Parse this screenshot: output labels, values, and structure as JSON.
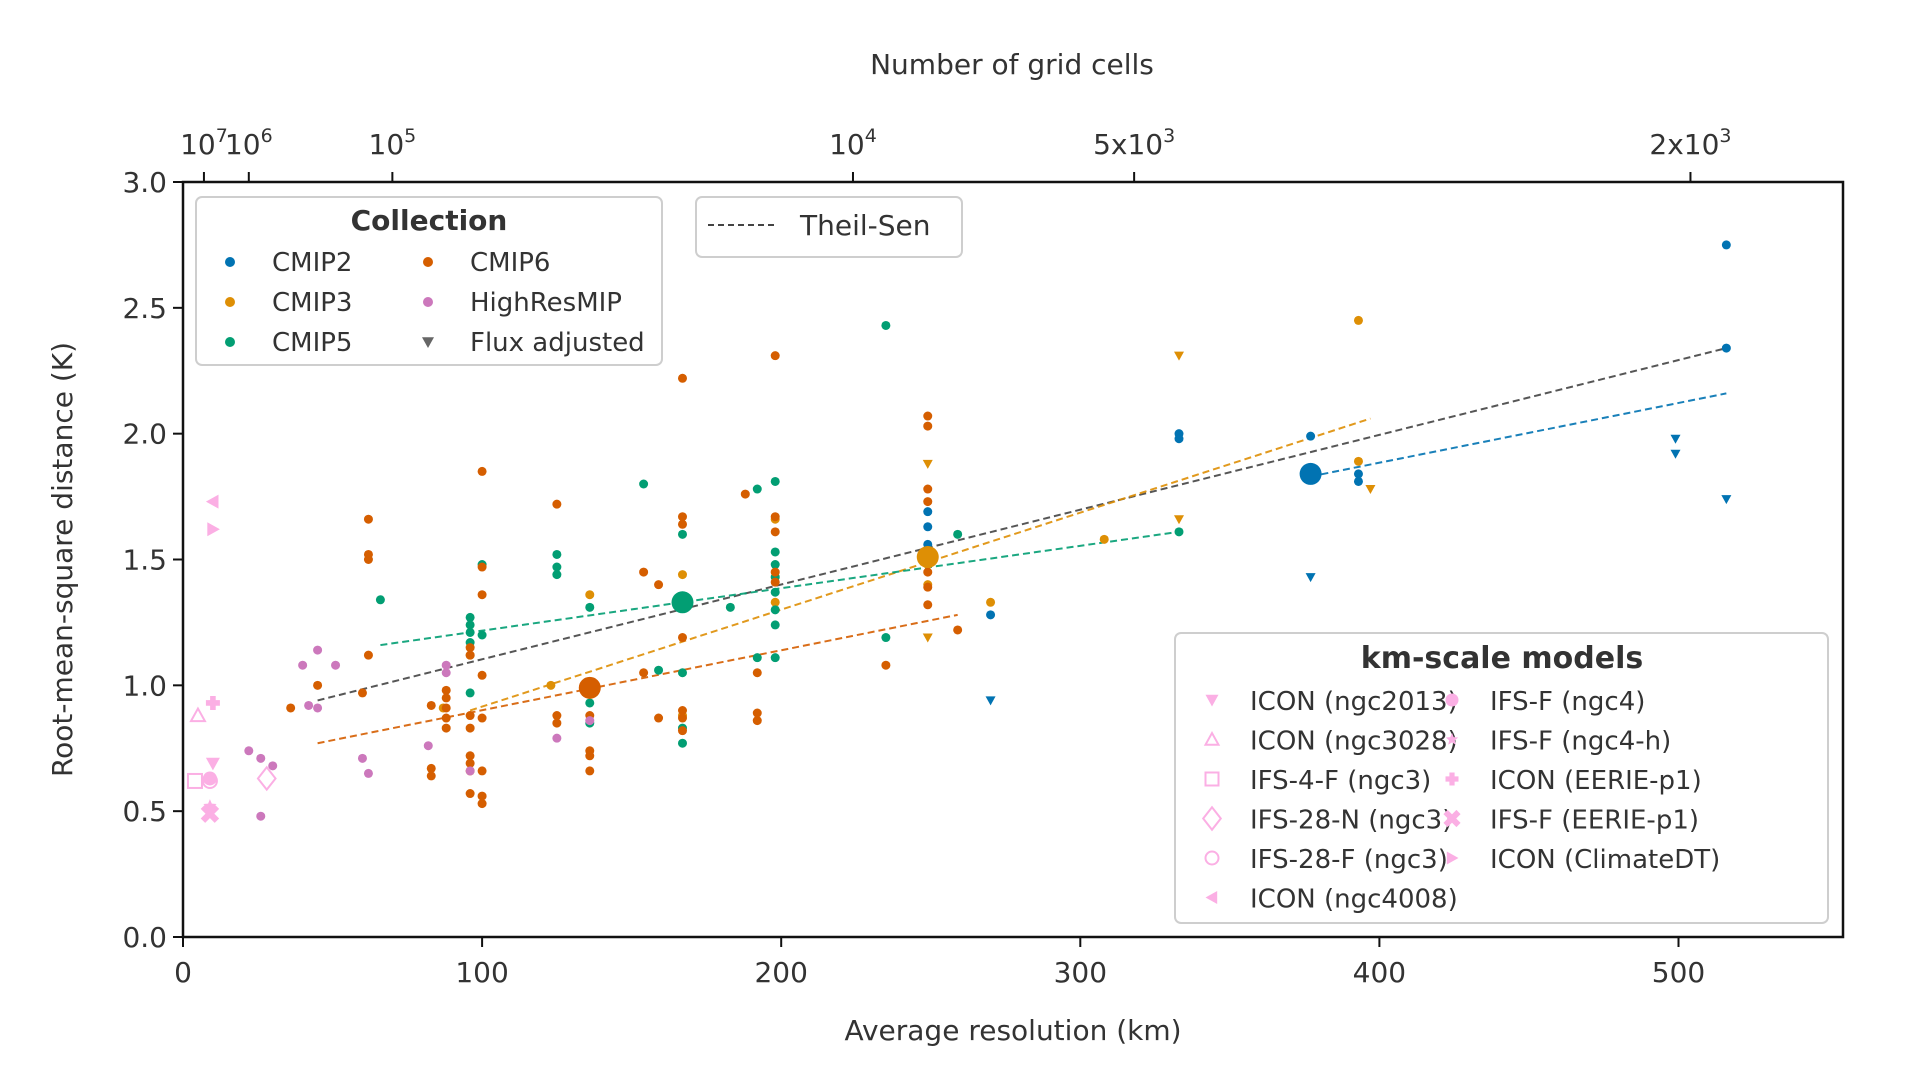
{
  "chart_data": {
    "type": "scatter",
    "title": "",
    "xlabel": "Average resolution (km)",
    "ylabel": "Root-mean-square distance (K)",
    "top_xlabel": "Number of grid cells",
    "xlim": [
      0,
      555
    ],
    "ylim": [
      0.0,
      3.0
    ],
    "xticks": [
      0,
      100,
      200,
      300,
      400,
      500
    ],
    "xtick_labels": [
      "0",
      "100",
      "200",
      "300",
      "400",
      "500"
    ],
    "yticks": [
      0.0,
      0.5,
      1.0,
      1.5,
      2.0,
      2.5,
      3.0
    ],
    "ytick_labels": [
      "0.0",
      "0.5",
      "1.0",
      "1.5",
      "2.0",
      "2.5",
      "3.0"
    ],
    "top_ticks": [
      {
        "km": 7,
        "base": "10",
        "exp": "7",
        "prefix": ""
      },
      {
        "km": 22,
        "base": "10",
        "exp": "6",
        "prefix": ""
      },
      {
        "km": 70,
        "base": "10",
        "exp": "5",
        "prefix": ""
      },
      {
        "km": 224,
        "base": "10",
        "exp": "4",
        "prefix": ""
      },
      {
        "km": 318,
        "base": "10",
        "exp": "3",
        "prefix": "5x"
      },
      {
        "km": 504,
        "base": "10",
        "exp": "3",
        "prefix": "2x"
      }
    ],
    "grid": false,
    "colors": {
      "CMIP2": "#0173b2",
      "CMIP3": "#de8f05",
      "CMIP5": "#029e73",
      "CMIP6": "#d55e00",
      "HighResMIP": "#cc78bc",
      "km": "#fbafe4",
      "flux": "#666666",
      "theil": "#444444"
    },
    "legend_collection": {
      "title": "Collection",
      "position": "top-left",
      "entries": [
        {
          "label": "CMIP2",
          "marker": "circle",
          "color_key": "CMIP2"
        },
        {
          "label": "CMIP3",
          "marker": "circle",
          "color_key": "CMIP3"
        },
        {
          "label": "CMIP5",
          "marker": "circle",
          "color_key": "CMIP5"
        },
        {
          "label": "CMIP6",
          "marker": "circle",
          "color_key": "CMIP6"
        },
        {
          "label": "HighResMIP",
          "marker": "circle",
          "color_key": "HighResMIP"
        },
        {
          "label": "Flux adjusted",
          "marker": "tri-down",
          "color_key": "flux"
        }
      ]
    },
    "legend_theil": {
      "label": "Theil-Sen",
      "position": "top-center"
    },
    "legend_km": {
      "title": "km-scale models",
      "position": "bottom-right",
      "entries": [
        {
          "label": "ICON (ngc2013)",
          "marker": "tri-down"
        },
        {
          "label": "ICON (ngc3028)",
          "marker": "tri-up-open"
        },
        {
          "label": "IFS-4-F (ngc3)",
          "marker": "square-open"
        },
        {
          "label": "IFS-28-N (ngc3)",
          "marker": "diamond-open"
        },
        {
          "label": "IFS-28-F (ngc3)",
          "marker": "circle-open"
        },
        {
          "label": "ICON (ngc4008)",
          "marker": "tri-left"
        },
        {
          "label": "IFS-F (ngc4)",
          "marker": "circle"
        },
        {
          "label": "IFS-F (ngc4-h)",
          "marker": "star"
        },
        {
          "label": "ICON (EERIE-p1)",
          "marker": "plus"
        },
        {
          "label": "IFS-F (EERIE-p1)",
          "marker": "x"
        },
        {
          "label": "ICON (ClimateDT)",
          "marker": "tri-right"
        }
      ]
    },
    "series": [
      {
        "name": "CMIP2",
        "points": [
          [
            516,
            2.75
          ],
          [
            516,
            2.34
          ],
          [
            377,
            1.99
          ],
          [
            333,
            2.0
          ],
          [
            333,
            1.98
          ],
          [
            249,
            1.69
          ],
          [
            249,
            1.63
          ],
          [
            249,
            1.56
          ],
          [
            270,
            1.28
          ],
          [
            393,
            1.84
          ],
          [
            393,
            1.81
          ]
        ],
        "flux_points": [
          [
            270,
            0.94
          ],
          [
            377,
            1.43
          ],
          [
            499,
            1.98
          ],
          [
            499,
            1.92
          ],
          [
            516,
            1.74
          ]
        ]
      },
      {
        "name": "CMIP3",
        "points": [
          [
            393,
            2.45
          ],
          [
            393,
            1.89
          ],
          [
            308,
            1.58
          ],
          [
            270,
            1.33
          ],
          [
            249,
            1.48
          ],
          [
            249,
            1.4
          ],
          [
            198,
            1.66
          ],
          [
            167,
            1.44
          ],
          [
            136,
            1.36
          ],
          [
            123,
            1.0
          ],
          [
            87,
            0.91
          ],
          [
            96,
            1.12
          ],
          [
            198,
            1.33
          ],
          [
            167,
            0.88
          ]
        ],
        "flux_points": [
          [
            333,
            2.31
          ],
          [
            333,
            1.66
          ],
          [
            249,
            1.88
          ],
          [
            249,
            1.19
          ],
          [
            397,
            1.78
          ]
        ]
      },
      {
        "name": "CMIP5",
        "points": [
          [
            235,
            2.43
          ],
          [
            198,
            1.81
          ],
          [
            192,
            1.78
          ],
          [
            154,
            1.8
          ],
          [
            167,
            1.6
          ],
          [
            125,
            1.52
          ],
          [
            125,
            1.47
          ],
          [
            125,
            1.44
          ],
          [
            96,
            1.27
          ],
          [
            96,
            1.24
          ],
          [
            96,
            1.21
          ],
          [
            96,
            1.17
          ],
          [
            100,
            1.2
          ],
          [
            66,
            1.34
          ],
          [
            136,
            1.31
          ],
          [
            167,
            1.33
          ],
          [
            198,
            1.53
          ],
          [
            198,
            1.48
          ],
          [
            198,
            1.43
          ],
          [
            198,
            1.37
          ],
          [
            198,
            1.3
          ],
          [
            198,
            1.24
          ],
          [
            198,
            1.11
          ],
          [
            167,
            1.05
          ],
          [
            167,
            0.83
          ],
          [
            167,
            0.77
          ],
          [
            136,
            0.93
          ],
          [
            136,
            0.85
          ],
          [
            159,
            1.06
          ],
          [
            235,
            1.19
          ],
          [
            333,
            1.61
          ],
          [
            259,
            1.6
          ],
          [
            249,
            1.52
          ],
          [
            192,
            1.11
          ],
          [
            96,
            0.97
          ],
          [
            100,
            1.48
          ],
          [
            183,
            1.31
          ]
        ],
        "flux_points": []
      },
      {
        "name": "CMIP6",
        "points": [
          [
            167,
            2.22
          ],
          [
            198,
            2.31
          ],
          [
            100,
            1.85
          ],
          [
            62,
            1.66
          ],
          [
            62,
            1.52
          ],
          [
            62,
            1.5
          ],
          [
            62,
            1.12
          ],
          [
            125,
            1.72
          ],
          [
            154,
            1.45
          ],
          [
            159,
            1.4
          ],
          [
            167,
            1.67
          ],
          [
            167,
            1.64
          ],
          [
            188,
            1.76
          ],
          [
            198,
            1.67
          ],
          [
            198,
            1.61
          ],
          [
            198,
            1.45
          ],
          [
            198,
            1.41
          ],
          [
            249,
            2.07
          ],
          [
            249,
            2.03
          ],
          [
            249,
            1.78
          ],
          [
            249,
            1.73
          ],
          [
            249,
            1.45
          ],
          [
            249,
            1.39
          ],
          [
            249,
            1.32
          ],
          [
            259,
            1.22
          ],
          [
            235,
            1.08
          ],
          [
            192,
            1.05
          ],
          [
            192,
            0.89
          ],
          [
            192,
            0.86
          ],
          [
            167,
            1.19
          ],
          [
            167,
            0.9
          ],
          [
            167,
            0.87
          ],
          [
            167,
            0.82
          ],
          [
            154,
            1.05
          ],
          [
            159,
            0.87
          ],
          [
            136,
            0.88
          ],
          [
            136,
            0.74
          ],
          [
            136,
            0.72
          ],
          [
            136,
            0.66
          ],
          [
            125,
            0.88
          ],
          [
            125,
            0.85
          ],
          [
            100,
            1.47
          ],
          [
            100,
            1.36
          ],
          [
            100,
            1.04
          ],
          [
            100,
            0.87
          ],
          [
            100,
            0.66
          ],
          [
            100,
            0.56
          ],
          [
            100,
            0.53
          ],
          [
            96,
            1.15
          ],
          [
            96,
            1.12
          ],
          [
            96,
            0.88
          ],
          [
            96,
            0.83
          ],
          [
            96,
            0.72
          ],
          [
            96,
            0.69
          ],
          [
            96,
            0.66
          ],
          [
            96,
            0.57
          ],
          [
            83,
            0.92
          ],
          [
            83,
            0.67
          ],
          [
            83,
            0.64
          ],
          [
            88,
            0.98
          ],
          [
            88,
            0.95
          ],
          [
            88,
            0.91
          ],
          [
            88,
            0.87
          ],
          [
            88,
            0.83
          ],
          [
            60,
            0.97
          ],
          [
            45,
            1.0
          ],
          [
            36,
            0.91
          ]
        ],
        "flux_points": []
      },
      {
        "name": "HighResMIP",
        "points": [
          [
            40,
            1.08
          ],
          [
            45,
            1.14
          ],
          [
            51,
            1.08
          ],
          [
            45,
            0.91
          ],
          [
            42,
            0.92
          ],
          [
            22,
            0.74
          ],
          [
            26,
            0.71
          ],
          [
            30,
            0.68
          ],
          [
            60,
            0.71
          ],
          [
            62,
            0.65
          ],
          [
            82,
            0.76
          ],
          [
            88,
            1.08
          ],
          [
            88,
            1.05
          ],
          [
            125,
            0.79
          ],
          [
            96,
            0.66
          ],
          [
            136,
            0.86
          ],
          [
            26,
            0.48
          ]
        ],
        "flux_points": []
      }
    ],
    "km_scale_points": [
      {
        "model": "ICON (ngc2013)",
        "marker": "tri-down",
        "x": 10,
        "y": 0.69
      },
      {
        "model": "ICON (ngc3028)",
        "marker": "tri-up-open",
        "x": 5,
        "y": 0.88
      },
      {
        "model": "IFS-4-F (ngc3)",
        "marker": "square-open",
        "x": 4,
        "y": 0.62
      },
      {
        "model": "IFS-28-N (ngc3)",
        "marker": "diamond-open",
        "x": 28,
        "y": 0.63
      },
      {
        "model": "IFS-28-F (ngc3)",
        "marker": "circle-open",
        "x": 9,
        "y": 0.62
      },
      {
        "model": "ICON (ngc4008)",
        "marker": "tri-left",
        "x": 10,
        "y": 1.73
      },
      {
        "model": "IFS-F (ngc4)",
        "marker": "circle",
        "x": 9,
        "y": 0.63
      },
      {
        "model": "IFS-F (ngc4-h)",
        "marker": "star",
        "x": 9,
        "y": 0.52
      },
      {
        "model": "ICON (EERIE-p1)",
        "marker": "plus",
        "x": 10,
        "y": 0.93
      },
      {
        "model": "IFS-F (EERIE-p1)",
        "marker": "x",
        "x": 9,
        "y": 0.49
      },
      {
        "model": "ICON (ClimateDT)",
        "marker": "tri-right",
        "x": 10,
        "y": 1.62
      }
    ],
    "means": [
      {
        "name": "CMIP2",
        "x": 377,
        "y": 1.84
      },
      {
        "name": "CMIP3",
        "x": 249,
        "y": 1.51
      },
      {
        "name": "CMIP5",
        "x": 167,
        "y": 1.33
      },
      {
        "name": "CMIP6",
        "x": 136,
        "y": 0.99
      }
    ],
    "fit_lines": [
      {
        "name": "Theil-Sen (all)",
        "color_key": "theil",
        "x": [
          45,
          516
        ],
        "y": [
          0.94,
          2.34
        ]
      },
      {
        "name": "CMIP2",
        "color_key": "CMIP2",
        "x": [
          377,
          516
        ],
        "y": [
          1.83,
          2.16
        ]
      },
      {
        "name": "CMIP3",
        "color_key": "CMIP3",
        "x": [
          96,
          397
        ],
        "y": [
          0.9,
          2.06
        ]
      },
      {
        "name": "CMIP5",
        "color_key": "CMIP5",
        "x": [
          66,
          333
        ],
        "y": [
          1.16,
          1.61
        ]
      },
      {
        "name": "CMIP6",
        "color_key": "CMIP6",
        "x": [
          45,
          259
        ],
        "y": [
          0.77,
          1.28
        ]
      }
    ]
  }
}
